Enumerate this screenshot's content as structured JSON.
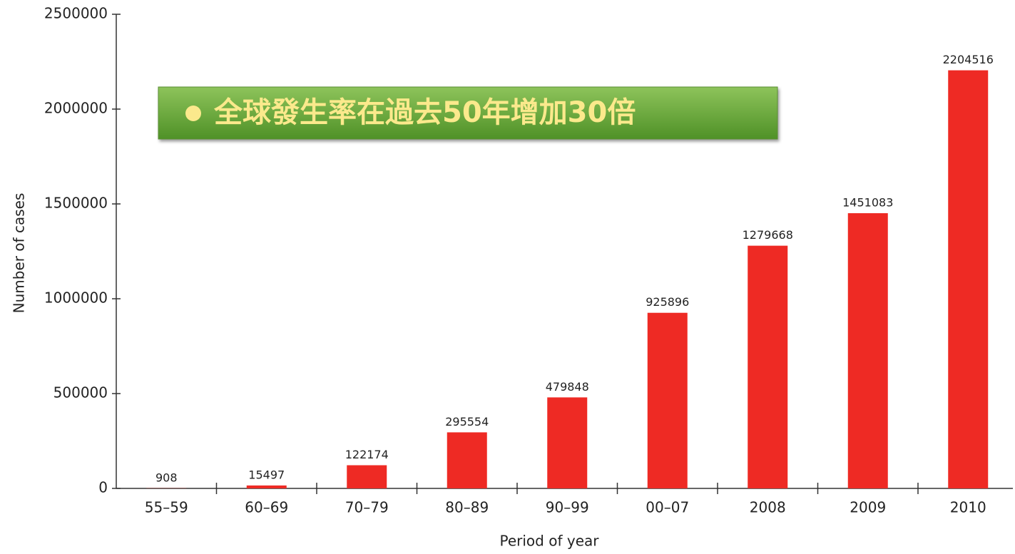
{
  "chart_data": {
    "type": "bar",
    "annotation": "全球發生率在過去50年增加30倍",
    "x_label": "Period of year",
    "y_label": "Number of cases",
    "categories": [
      "55–59",
      "60–69",
      "70–79",
      "80–89",
      "90–99",
      "00–07",
      "2008",
      "2009",
      "2010"
    ],
    "values": [
      908,
      15497,
      122174,
      295554,
      479848,
      925896,
      1279668,
      1451083,
      2204516
    ],
    "color": "#ee2a24",
    "ylim": [
      0,
      2500000
    ],
    "yticks": [
      0,
      500000,
      1000000,
      1500000,
      2000000,
      2500000
    ],
    "grid": false
  }
}
